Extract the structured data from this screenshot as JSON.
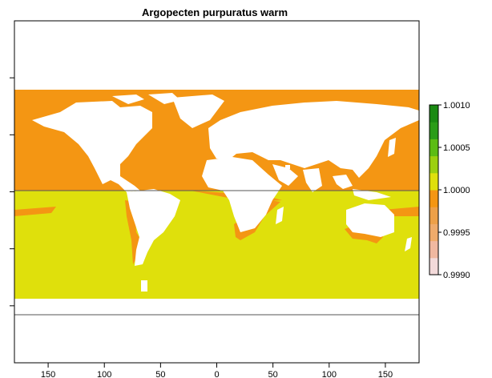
{
  "map": {
    "title": "Argopecten purpuratus warm",
    "x_ticks": [
      -150,
      -100,
      -50,
      0,
      50,
      100,
      150
    ],
    "x_tick_labels": [
      "150",
      "100",
      "50",
      "0",
      "50",
      "100",
      "150"
    ],
    "y_ticks": [
      -80,
      -40,
      0,
      40,
      80
    ],
    "x_range": [
      -180,
      180
    ],
    "y_range": [
      -120,
      120
    ],
    "horizontal_lines": [
      0,
      -88
    ],
    "regions": {
      "north_band": {
        "lat_range": [
          0,
          72
        ],
        "value_color": "#f49613"
      },
      "south_band": {
        "lat_range": [
          -76,
          0
        ],
        "value_color": "#dfe00c"
      },
      "south_fringe_color": "#f49613",
      "land_color": "#ffffff"
    }
  },
  "legend": {
    "tick_labels": [
      "1.0010",
      "1.0005",
      "1.0000",
      "0.9995",
      "0.9990"
    ],
    "min": 0.999,
    "max": 1.001,
    "colors": [
      "#f3dada",
      "#f0b8a0",
      "#efab6b",
      "#eda048",
      "#f49613",
      "#dfe00c",
      "#9cd00f",
      "#5cbc14",
      "#2a9c18",
      "#1a8a12"
    ]
  }
}
